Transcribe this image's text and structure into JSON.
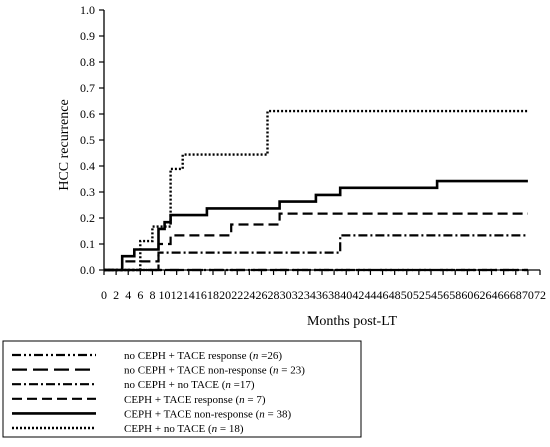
{
  "chart_data": {
    "type": "line",
    "subtype": "step",
    "xlabel": "Months post-LT",
    "ylabel": "HCC recurrence",
    "xlim": [
      0,
      72
    ],
    "ylim": [
      0,
      1.0
    ],
    "x_ticks": [
      0,
      2,
      4,
      6,
      8,
      10,
      12,
      14,
      16,
      18,
      20,
      22,
      24,
      26,
      28,
      30,
      32,
      34,
      36,
      38,
      40,
      42,
      44,
      46,
      48,
      50,
      52,
      54,
      56,
      58,
      60,
      62,
      64,
      66,
      68,
      70,
      72
    ],
    "y_ticks": [
      "0.0",
      "0.1",
      "0.2",
      "0.3",
      "0.4",
      "0.5",
      "0.6",
      "0.7",
      "0.8",
      "0.9",
      "1.0"
    ],
    "grid": false,
    "legend_position": "below",
    "series": [
      {
        "legend": [
          "no CEPH + TACE response (",
          "n",
          " =26)"
        ],
        "style": "dash-dot-dot",
        "points": [
          [
            0,
            0
          ],
          [
            70,
            0
          ]
        ]
      },
      {
        "legend": [
          "no CEPH + TACE non-response (",
          "n",
          " = 23)"
        ],
        "style": "long-dash",
        "points": [
          [
            0,
            0
          ],
          [
            70,
            0
          ]
        ]
      },
      {
        "legend": [
          "no CEPH + no TACE (",
          "n",
          " =17)"
        ],
        "style": "dash-dot",
        "points": [
          [
            0,
            0
          ],
          [
            9,
            0
          ],
          [
            9,
            0.067
          ],
          [
            39,
            0.067
          ],
          [
            39,
            0.133
          ],
          [
            70,
            0.133
          ]
        ]
      },
      {
        "legend": [
          "CEPH + TACE response (",
          "n",
          " = 7)"
        ],
        "style": "dash",
        "points": [
          [
            0,
            0
          ],
          [
            3,
            0
          ],
          [
            3,
            0.033
          ],
          [
            9,
            0.033
          ],
          [
            9,
            0.1
          ],
          [
            11,
            0.1
          ],
          [
            11,
            0.133
          ],
          [
            21,
            0.133
          ],
          [
            21,
            0.175
          ],
          [
            29,
            0.175
          ],
          [
            29,
            0.217
          ],
          [
            70,
            0.217
          ]
        ]
      },
      {
        "legend": [
          "CEPH + TACE non-response (",
          "n",
          " = 38)"
        ],
        "style": "solid",
        "points": [
          [
            0,
            0
          ],
          [
            3,
            0
          ],
          [
            3,
            0.053
          ],
          [
            5,
            0.053
          ],
          [
            5,
            0.079
          ],
          [
            9,
            0.079
          ],
          [
            9,
            0.158
          ],
          [
            10,
            0.158
          ],
          [
            10,
            0.184
          ],
          [
            11,
            0.184
          ],
          [
            11,
            0.211
          ],
          [
            17,
            0.211
          ],
          [
            17,
            0.237
          ],
          [
            29,
            0.237
          ],
          [
            29,
            0.263
          ],
          [
            35,
            0.263
          ],
          [
            35,
            0.289
          ],
          [
            39,
            0.289
          ],
          [
            39,
            0.316
          ],
          [
            55,
            0.316
          ],
          [
            55,
            0.342
          ],
          [
            70,
            0.342
          ]
        ]
      },
      {
        "legend": [
          "CEPH + no TACE (",
          "n",
          " = 18)"
        ],
        "style": "dotted",
        "points": [
          [
            0,
            0
          ],
          [
            6,
            0
          ],
          [
            6,
            0.111
          ],
          [
            8,
            0.111
          ],
          [
            8,
            0.167
          ],
          [
            11,
            0.167
          ],
          [
            11,
            0.389
          ],
          [
            13,
            0.389
          ],
          [
            13,
            0.444
          ],
          [
            27,
            0.444
          ],
          [
            27,
            0.611
          ],
          [
            70,
            0.611
          ]
        ]
      }
    ]
  }
}
